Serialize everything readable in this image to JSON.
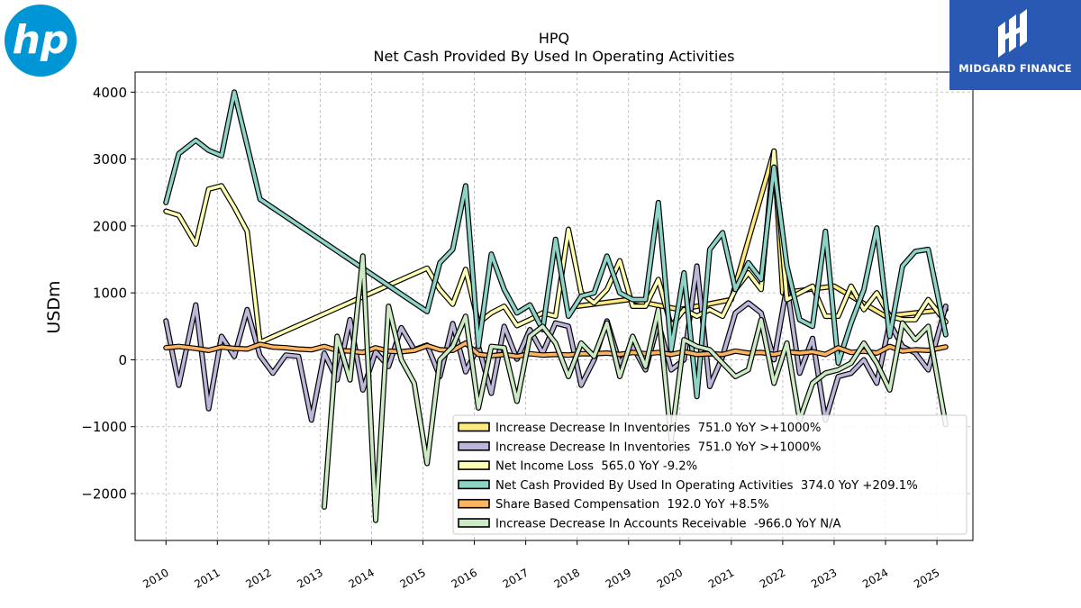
{
  "logos": {
    "hp": {
      "text": "hp",
      "color": "#0096d6"
    },
    "midgard": {
      "text": "MIDGARD FINANCE",
      "color": "#2a59b4"
    }
  },
  "chart_data": {
    "type": "line",
    "title": "HPQ",
    "subtitle": "Net Cash Provided By Used In Operating Activities",
    "xlabel": "",
    "ylabel": "USDm",
    "xlim": [
      2009.4,
      2025.7
    ],
    "ylim": [
      -2700,
      4300
    ],
    "yticks": [
      -2000,
      -1000,
      0,
      1000,
      2000,
      3000,
      4000
    ],
    "ytick_labels": [
      "−2000",
      "−1000",
      "0",
      "1000",
      "2000",
      "3000",
      "4000"
    ],
    "xticks": [
      2010,
      2011,
      2012,
      2013,
      2014,
      2015,
      2016,
      2017,
      2018,
      2019,
      2020,
      2021,
      2022,
      2023,
      2024,
      2025
    ],
    "xtick_labels": [
      "2010",
      "2011",
      "2012",
      "2013",
      "2014",
      "2015",
      "2016",
      "2017",
      "2018",
      "2019",
      "2020",
      "2021",
      "2022",
      "2023",
      "2024",
      "2025"
    ],
    "grid": true,
    "legend_position": "bottom-right",
    "series": [
      {
        "name": "Increase Decrease In Inventories  751.0 YoY >+1000%",
        "color": "#fde97e",
        "x": [
          2018.0,
          2019.0,
          2020.0,
          2021.0,
          2021.83,
          2022.0,
          2023.0,
          2024.0,
          2025.17
        ],
        "y": [
          800,
          900,
          750,
          900,
          3120,
          1000,
          1100,
          650,
          751
        ]
      },
      {
        "name": "Increase Decrease In Inventories  751.0 YoY >+1000%",
        "color": "#bcb6d8",
        "x": [
          2010.0,
          2010.25,
          2010.58,
          2010.83,
          2011.08,
          2011.33,
          2011.58,
          2011.83,
          2012.08,
          2012.33,
          2012.58,
          2012.83,
          2013.08,
          2013.33,
          2013.58,
          2013.83,
          2014.08,
          2014.33,
          2014.58,
          2014.83,
          2015.08,
          2015.33,
          2015.58,
          2015.83,
          2016.08,
          2016.33,
          2016.58,
          2016.83,
          2017.08,
          2017.33,
          2017.58,
          2017.83,
          2018.08,
          2018.33,
          2018.58,
          2018.83,
          2019.08,
          2019.33,
          2019.58,
          2019.83,
          2020.08,
          2020.33,
          2020.58,
          2020.83,
          2021.08,
          2021.33,
          2021.58,
          2021.83,
          2022.08,
          2022.33,
          2022.58,
          2022.83,
          2023.08,
          2023.33,
          2023.58,
          2023.83,
          2024.08,
          2024.33,
          2024.58,
          2024.83,
          2025.17
        ],
        "y": [
          580,
          -380,
          820,
          -730,
          350,
          50,
          750,
          60,
          -200,
          70,
          50,
          -900,
          100,
          -300,
          600,
          -450,
          120,
          -100,
          480,
          150,
          220,
          -250,
          540,
          -180,
          200,
          -500,
          500,
          10,
          450,
          100,
          550,
          500,
          -380,
          0,
          580,
          -50,
          200,
          -150,
          550,
          -150,
          0,
          1400,
          -400,
          50,
          700,
          850,
          700,
          0,
          1100,
          -200,
          320,
          -900,
          -250,
          -200,
          0,
          -350,
          550,
          200,
          100,
          -150,
          800
        ]
      },
      {
        "name": "Net Income Loss  565.0 YoY -9.2%",
        "color": "#ffffb3",
        "x": [
          2010.0,
          2010.25,
          2010.58,
          2010.83,
          2011.08,
          2011.33,
          2011.58,
          2011.83,
          2015.08,
          2015.33,
          2015.58,
          2015.83,
          2016.08,
          2016.33,
          2016.58,
          2016.83,
          2017.08,
          2017.33,
          2017.58,
          2017.83,
          2018.08,
          2018.33,
          2018.58,
          2018.83,
          2019.08,
          2019.33,
          2019.58,
          2019.83,
          2020.08,
          2020.33,
          2020.58,
          2020.83,
          2021.08,
          2021.33,
          2021.58,
          2021.83,
          2022.08,
          2022.33,
          2022.58,
          2022.83,
          2023.08,
          2023.33,
          2023.58,
          2023.83,
          2024.08,
          2024.33,
          2024.58,
          2024.83,
          2025.17
        ],
        "y": [
          2220,
          2160,
          1730,
          2550,
          2600,
          2280,
          1920,
          260,
          1370,
          1050,
          830,
          1350,
          550,
          700,
          800,
          510,
          600,
          700,
          650,
          1950,
          1000,
          850,
          1050,
          1480,
          800,
          800,
          1200,
          500,
          750,
          650,
          750,
          650,
          1050,
          1300,
          1050,
          3120,
          900,
          1000,
          1100,
          650,
          650,
          1100,
          750,
          1000,
          650,
          600,
          600,
          900,
          565
        ]
      },
      {
        "name": "Net Cash Provided By Used In Operating Activities  374.0 YoY +209.1%",
        "color": "#8dd3c7",
        "x": [
          2010.0,
          2010.25,
          2010.58,
          2010.83,
          2011.08,
          2011.33,
          2011.58,
          2011.83,
          2015.08,
          2015.33,
          2015.58,
          2015.83,
          2016.08,
          2016.33,
          2016.58,
          2016.83,
          2017.08,
          2017.33,
          2017.58,
          2017.83,
          2018.08,
          2018.33,
          2018.58,
          2018.83,
          2019.08,
          2019.33,
          2019.58,
          2019.83,
          2020.08,
          2020.33,
          2020.58,
          2020.83,
          2021.08,
          2021.33,
          2021.58,
          2021.83,
          2022.08,
          2022.33,
          2022.58,
          2022.83,
          2023.08,
          2023.33,
          2023.58,
          2023.83,
          2024.08,
          2024.33,
          2024.58,
          2024.83,
          2025.17
        ],
        "y": [
          2350,
          3080,
          3280,
          3130,
          3050,
          4000,
          3200,
          2400,
          720,
          1450,
          1650,
          2600,
          200,
          1580,
          1050,
          700,
          820,
          450,
          1800,
          650,
          950,
          1000,
          1550,
          1000,
          900,
          900,
          2350,
          150,
          1300,
          -550,
          1650,
          1900,
          1050,
          1450,
          1200,
          2880,
          1400,
          600,
          500,
          1920,
          -50,
          550,
          1050,
          1970,
          350,
          1400,
          1620,
          1650,
          374
        ]
      },
      {
        "name": "Share Based Compensation  192.0 YoY +8.5%",
        "color": "#fdb462",
        "x": [
          2010.0,
          2010.25,
          2010.58,
          2010.83,
          2011.08,
          2011.33,
          2011.58,
          2011.83,
          2012.08,
          2012.33,
          2012.58,
          2012.83,
          2013.08,
          2013.33,
          2013.58,
          2013.83,
          2014.08,
          2014.33,
          2014.58,
          2014.83,
          2015.08,
          2015.33,
          2015.58,
          2015.83,
          2016.08,
          2016.33,
          2016.58,
          2016.83,
          2017.08,
          2017.33,
          2017.58,
          2017.83,
          2018.08,
          2018.33,
          2018.58,
          2018.83,
          2019.08,
          2019.33,
          2019.58,
          2019.83,
          2020.08,
          2020.33,
          2020.58,
          2020.83,
          2021.08,
          2021.33,
          2021.58,
          2021.83,
          2022.08,
          2022.33,
          2022.58,
          2022.83,
          2023.08,
          2023.33,
          2023.58,
          2023.83,
          2024.08,
          2024.33,
          2024.58,
          2024.83,
          2025.17
        ],
        "y": [
          180,
          200,
          170,
          140,
          190,
          170,
          160,
          230,
          190,
          180,
          160,
          150,
          200,
          140,
          130,
          110,
          180,
          130,
          120,
          140,
          210,
          150,
          140,
          250,
          80,
          60,
          80,
          50,
          90,
          70,
          80,
          70,
          90,
          90,
          100,
          80,
          110,
          90,
          110,
          80,
          120,
          80,
          90,
          80,
          130,
          100,
          110,
          80,
          120,
          100,
          120,
          80,
          180,
          110,
          130,
          100,
          200,
          130,
          150,
          140,
          192
        ]
      },
      {
        "name": "Increase Decrease In Accounts Receivable  -966.0 YoY N/A",
        "color": "#ccebc5",
        "x": [
          2013.08,
          2013.33,
          2013.58,
          2013.83,
          2014.08,
          2014.33,
          2014.58,
          2014.83,
          2015.08,
          2015.33,
          2015.58,
          2015.83,
          2016.08,
          2016.33,
          2016.58,
          2016.83,
          2017.08,
          2017.33,
          2017.58,
          2017.83,
          2018.08,
          2018.33,
          2018.58,
          2018.83,
          2019.08,
          2019.33,
          2019.58,
          2019.83,
          2020.08,
          2020.33,
          2020.58,
          2020.83,
          2021.08,
          2021.33,
          2021.58,
          2021.83,
          2022.08,
          2022.33,
          2022.58,
          2022.83,
          2023.08,
          2023.33,
          2023.58,
          2023.83,
          2024.08,
          2024.33,
          2024.58,
          2024.83,
          2025.17
        ],
        "y": [
          -2200,
          350,
          -300,
          1550,
          -2400,
          800,
          0,
          -350,
          -1550,
          0,
          200,
          650,
          -720,
          200,
          180,
          -620,
          350,
          500,
          250,
          -250,
          250,
          50,
          550,
          -250,
          350,
          -100,
          750,
          -1200,
          300,
          200,
          150,
          -50,
          -250,
          -150,
          600,
          -350,
          250,
          -900,
          -350,
          -200,
          -150,
          -50,
          250,
          -50,
          -450,
          550,
          300,
          500,
          -966
        ]
      }
    ]
  }
}
